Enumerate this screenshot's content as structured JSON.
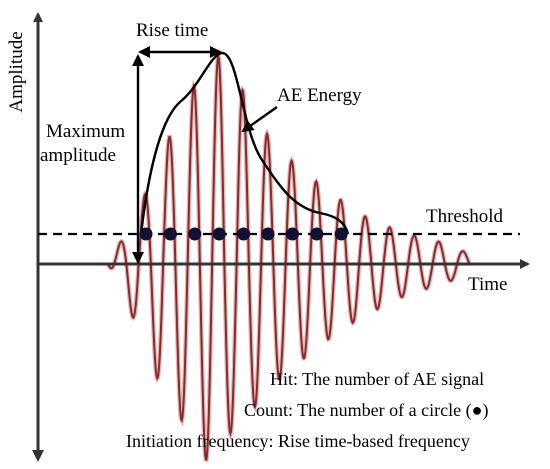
{
  "axes": {
    "y_label": "Amplitude",
    "x_label": "Time"
  },
  "labels": {
    "rise_time": "Rise time",
    "max_amplitude_line1": "Maximum",
    "max_amplitude_line2": "amplitude",
    "ae_energy": "AE Energy",
    "threshold": "Threshold"
  },
  "legend": {
    "hit": "Hit: The number of AE signal",
    "count": "Count: The number of a circle (●)",
    "initiation": "Initiation frequency: Rise time-based frequency"
  },
  "colors": {
    "waveform_dark": "#8b2a2a",
    "waveform_light": "#c88080",
    "count_dot": "#111133",
    "axis": "#222222"
  },
  "waveform": {
    "threshold_crossings": 9
  }
}
